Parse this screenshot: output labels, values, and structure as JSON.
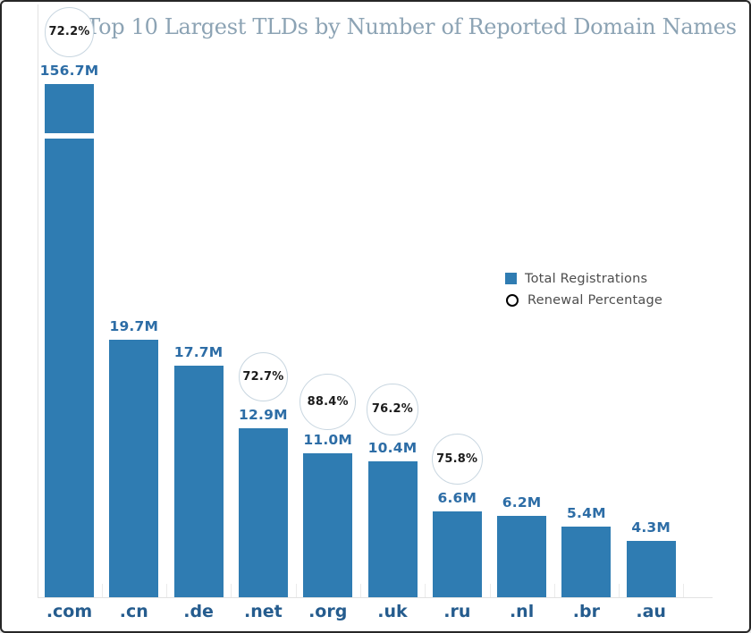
{
  "frame": {
    "background": "#ffffff",
    "border_color": "#262626"
  },
  "header": {
    "title": "Top 10 Largest TLDs by Number of Reported Domain Names"
  },
  "legend": {
    "items": [
      {
        "label": "Total Registrations",
        "swatch": "square"
      },
      {
        "label": "Renewal Percentage",
        "swatch": "circle"
      }
    ]
  },
  "colors": {
    "bar": "#2f7cb2",
    "title": "#8ca3b4",
    "value_label": "#2d6da6",
    "category_label": "#255c8e",
    "percent_text": "#1b1b1b",
    "circle_stroke": "#c8d6e0",
    "legend_text": "#4d4d4d",
    "axis_line": "#e2e2e2"
  },
  "chart_data": {
    "type": "bar",
    "title": "Top 10 Largest TLDs by Number of Reported Domain Names",
    "categories": [
      ".com",
      ".cn",
      ".de",
      ".net",
      ".org",
      ".uk",
      ".ru",
      ".nl",
      ".br",
      ".au"
    ],
    "series": [
      {
        "name": "Total Registrations",
        "unit": "M",
        "values": [
          156.7,
          19.7,
          17.7,
          12.9,
          11.0,
          10.4,
          6.6,
          6.2,
          5.4,
          4.3
        ]
      },
      {
        "name": "Renewal Percentage",
        "unit": "%",
        "values": [
          72.2,
          null,
          null,
          72.7,
          88.4,
          76.2,
          75.8,
          null,
          null,
          null
        ]
      }
    ],
    "value_labels": [
      "156.7M",
      "19.7M",
      "17.7M",
      "12.9M",
      "11.0M",
      "10.4M",
      "6.6M",
      "6.2M",
      "5.4M",
      "4.3M"
    ],
    "renewal_labels": [
      "72.2%",
      null,
      null,
      "72.7%",
      "88.4%",
      "76.2%",
      "75.8%",
      null,
      null,
      null
    ],
    "axis_break": {
      "category": ".com",
      "note": "tallest bar truncated with white gap"
    },
    "grid": "off",
    "legend_position": "middle-right",
    "xlabel": "",
    "ylabel": ""
  }
}
